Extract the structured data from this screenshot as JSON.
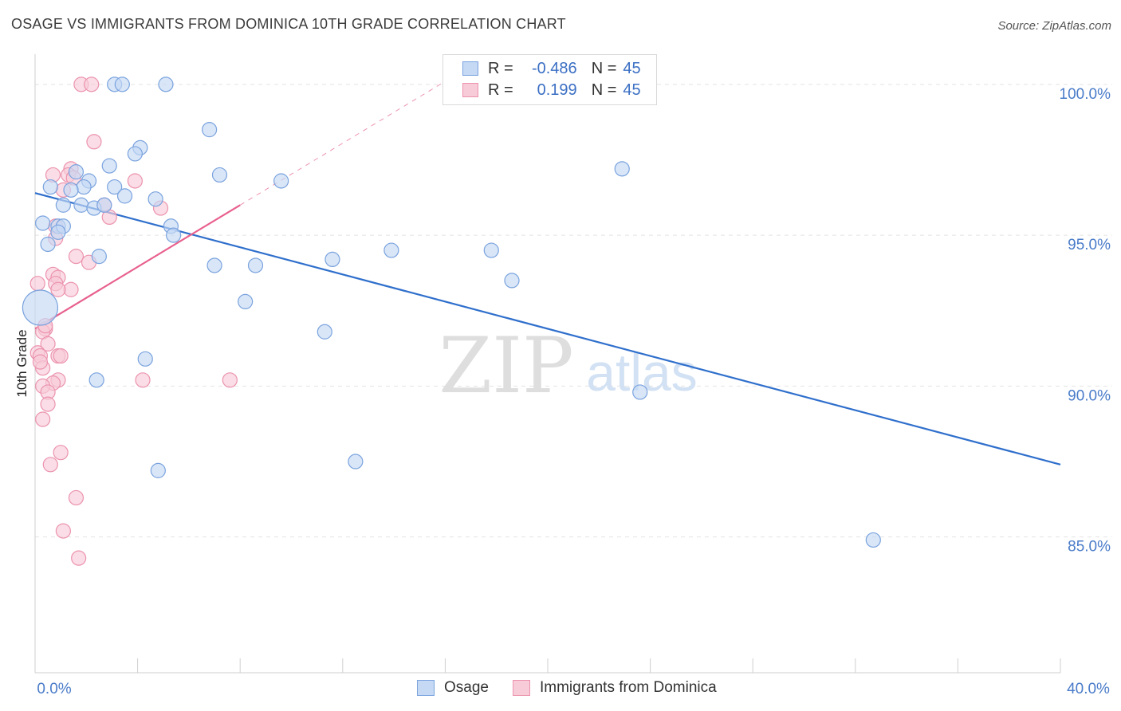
{
  "title": "OSAGE VS IMMIGRANTS FROM DOMINICA 10TH GRADE CORRELATION CHART",
  "source": "Source: ZipAtlas.com",
  "watermark": {
    "zip": "ZIP",
    "atlas": "atlas"
  },
  "legend_top": {
    "rows": [
      {
        "r_label": "R =",
        "r_value": "-0.486",
        "n_label": "N =",
        "n_value": "45"
      },
      {
        "r_label": "R =",
        "r_value": "0.199",
        "n_label": "N =",
        "n_value": "45"
      }
    ]
  },
  "legend_bottom": {
    "series_a": "Osage",
    "series_b": "Immigrants from Dominica"
  },
  "colors": {
    "blue_fill": "#c5d9f5",
    "blue_stroke": "#7aa3de",
    "blue_line": "#2f6fcc",
    "pink_fill": "#f8cbd8",
    "pink_stroke": "#ec93ae",
    "pink_line": "#e8608d",
    "axis_text": "#4a7cc9",
    "grid": "#e3e3e3"
  },
  "chart_data": {
    "type": "scatter",
    "title": "OSAGE VS IMMIGRANTS FROM DOMINICA 10TH GRADE CORRELATION CHART",
    "xlabel": "",
    "ylabel": "10th Grade",
    "xlim": [
      0,
      40
    ],
    "ylim": [
      80.5,
      101
    ],
    "x_tick_labels": [
      "0.0%",
      "40.0%"
    ],
    "y_ticks": [
      85,
      90,
      95,
      100
    ],
    "y_tick_labels": [
      "85.0%",
      "90.0%",
      "95.0%",
      "100.0%"
    ],
    "series": [
      {
        "name": "Osage",
        "r": -0.486,
        "n": 45,
        "trend": {
          "x": [
            0,
            40
          ],
          "y": [
            96.4,
            87.4
          ]
        },
        "points": [
          {
            "x": 3.1,
            "y": 100.0
          },
          {
            "x": 3.4,
            "y": 100.0
          },
          {
            "x": 5.1,
            "y": 100.0
          },
          {
            "x": 6.8,
            "y": 98.5
          },
          {
            "x": 4.1,
            "y": 97.9
          },
          {
            "x": 3.9,
            "y": 97.7
          },
          {
            "x": 2.9,
            "y": 97.3
          },
          {
            "x": 1.6,
            "y": 97.1
          },
          {
            "x": 7.2,
            "y": 97.0
          },
          {
            "x": 2.1,
            "y": 96.8
          },
          {
            "x": 9.6,
            "y": 96.8
          },
          {
            "x": 0.6,
            "y": 96.6
          },
          {
            "x": 1.9,
            "y": 96.6
          },
          {
            "x": 3.1,
            "y": 96.6
          },
          {
            "x": 1.4,
            "y": 96.5
          },
          {
            "x": 3.5,
            "y": 96.3
          },
          {
            "x": 4.7,
            "y": 96.2
          },
          {
            "x": 1.8,
            "y": 96.0
          },
          {
            "x": 2.3,
            "y": 95.9
          },
          {
            "x": 2.7,
            "y": 96.0
          },
          {
            "x": 0.3,
            "y": 95.4
          },
          {
            "x": 0.9,
            "y": 95.3
          },
          {
            "x": 1.1,
            "y": 95.3
          },
          {
            "x": 5.3,
            "y": 95.3
          },
          {
            "x": 0.9,
            "y": 95.1
          },
          {
            "x": 5.4,
            "y": 95.0
          },
          {
            "x": 0.5,
            "y": 94.7
          },
          {
            "x": 2.5,
            "y": 94.3
          },
          {
            "x": 7.0,
            "y": 94.0
          },
          {
            "x": 8.6,
            "y": 94.0
          },
          {
            "x": 11.6,
            "y": 94.2
          },
          {
            "x": 13.9,
            "y": 94.5
          },
          {
            "x": 17.8,
            "y": 94.5
          },
          {
            "x": 18.6,
            "y": 93.5
          },
          {
            "x": 8.2,
            "y": 92.8
          },
          {
            "x": 11.3,
            "y": 91.8
          },
          {
            "x": 4.3,
            "y": 90.9
          },
          {
            "x": 2.4,
            "y": 90.2
          },
          {
            "x": 23.6,
            "y": 89.8
          },
          {
            "x": 4.8,
            "y": 87.2
          },
          {
            "x": 12.5,
            "y": 87.5
          },
          {
            "x": 32.7,
            "y": 84.9
          },
          {
            "x": 22.9,
            "y": 97.2
          },
          {
            "x": 0.2,
            "y": 92.6,
            "big": true
          },
          {
            "x": 1.1,
            "y": 96.0
          }
        ]
      },
      {
        "name": "Immigrants from Dominica",
        "r": 0.199,
        "n": 45,
        "trend": {
          "x": [
            0,
            8
          ],
          "y": [
            91.9,
            96.0
          ]
        },
        "trend_extension": {
          "x": [
            8,
            16
          ],
          "y": [
            96.0,
            100.1
          ]
        },
        "points": [
          {
            "x": 1.8,
            "y": 100.0
          },
          {
            "x": 2.2,
            "y": 100.0
          },
          {
            "x": 2.3,
            "y": 98.1
          },
          {
            "x": 1.4,
            "y": 97.2
          },
          {
            "x": 0.7,
            "y": 97.0
          },
          {
            "x": 1.3,
            "y": 97.0
          },
          {
            "x": 1.5,
            "y": 96.9
          },
          {
            "x": 3.9,
            "y": 96.8
          },
          {
            "x": 1.1,
            "y": 96.5
          },
          {
            "x": 2.7,
            "y": 96.0
          },
          {
            "x": 4.9,
            "y": 95.9
          },
          {
            "x": 2.9,
            "y": 95.6
          },
          {
            "x": 0.8,
            "y": 95.3
          },
          {
            "x": 0.8,
            "y": 94.9
          },
          {
            "x": 1.6,
            "y": 94.3
          },
          {
            "x": 2.1,
            "y": 94.1
          },
          {
            "x": 0.7,
            "y": 93.7
          },
          {
            "x": 0.9,
            "y": 93.6
          },
          {
            "x": 0.1,
            "y": 93.4
          },
          {
            "x": 0.8,
            "y": 93.4
          },
          {
            "x": 1.4,
            "y": 93.2
          },
          {
            "x": 0.9,
            "y": 93.2
          },
          {
            "x": 0.4,
            "y": 91.9
          },
          {
            "x": 0.3,
            "y": 91.8
          },
          {
            "x": 0.5,
            "y": 91.4
          },
          {
            "x": 0.1,
            "y": 91.1
          },
          {
            "x": 0.2,
            "y": 91.0
          },
          {
            "x": 0.9,
            "y": 91.0
          },
          {
            "x": 1.0,
            "y": 91.0
          },
          {
            "x": 0.3,
            "y": 90.6
          },
          {
            "x": 0.2,
            "y": 90.8
          },
          {
            "x": 0.9,
            "y": 90.2
          },
          {
            "x": 0.7,
            "y": 90.1
          },
          {
            "x": 0.3,
            "y": 90.0
          },
          {
            "x": 0.5,
            "y": 89.8
          },
          {
            "x": 4.2,
            "y": 90.2
          },
          {
            "x": 7.6,
            "y": 90.2
          },
          {
            "x": 0.5,
            "y": 89.4
          },
          {
            "x": 0.3,
            "y": 88.9
          },
          {
            "x": 1.0,
            "y": 87.8
          },
          {
            "x": 0.6,
            "y": 87.4
          },
          {
            "x": 1.6,
            "y": 86.3
          },
          {
            "x": 1.1,
            "y": 85.2
          },
          {
            "x": 1.7,
            "y": 84.3
          },
          {
            "x": 0.4,
            "y": 92.0
          }
        ]
      }
    ]
  }
}
